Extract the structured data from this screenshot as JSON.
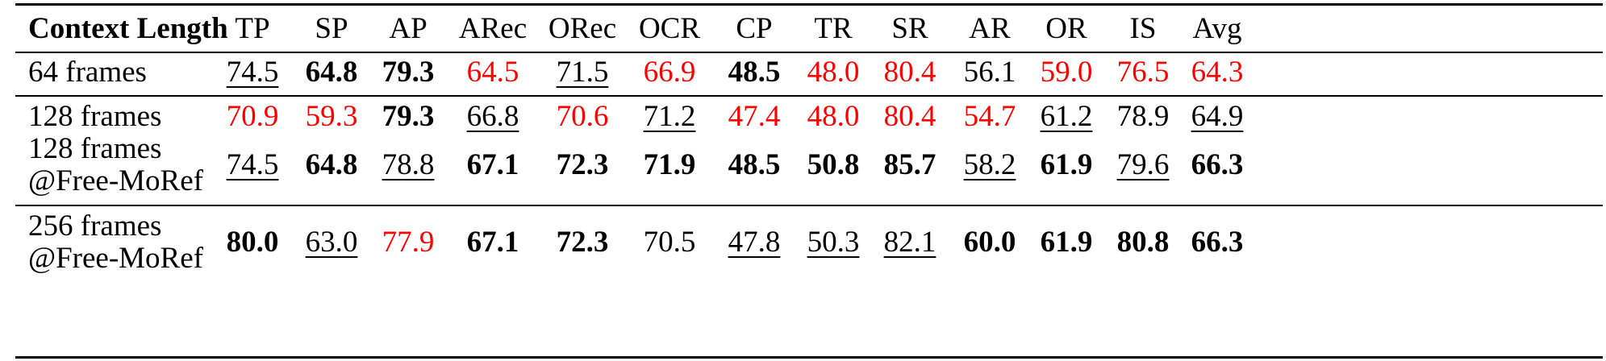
{
  "table": {
    "header": {
      "first": "Context Length",
      "columns": [
        "TP",
        "SP",
        "AP",
        "ARec",
        "ORec",
        "OCR",
        "CP",
        "TR",
        "SR",
        "AR",
        "OR",
        "IS",
        "Avg"
      ]
    },
    "rows": [
      {
        "label": [
          "64 frames"
        ],
        "cells": [
          {
            "v": "74.5",
            "s": "u"
          },
          {
            "v": "64.8",
            "s": "b"
          },
          {
            "v": "79.3",
            "s": "b"
          },
          {
            "v": "64.5",
            "s": "r"
          },
          {
            "v": "71.5",
            "s": "u"
          },
          {
            "v": "66.9",
            "s": "r"
          },
          {
            "v": "48.5",
            "s": "b"
          },
          {
            "v": "48.0",
            "s": "r"
          },
          {
            "v": "80.4",
            "s": "r"
          },
          {
            "v": "56.1",
            "s": ""
          },
          {
            "v": "59.0",
            "s": "r"
          },
          {
            "v": "76.5",
            "s": "r"
          },
          {
            "v": "64.3",
            "s": "r"
          }
        ]
      },
      {
        "label": [
          "128 frames"
        ],
        "cells": [
          {
            "v": "70.9",
            "s": "r"
          },
          {
            "v": "59.3",
            "s": "r"
          },
          {
            "v": "79.3",
            "s": "b"
          },
          {
            "v": "66.8",
            "s": "u"
          },
          {
            "v": "70.6",
            "s": "r"
          },
          {
            "v": "71.2",
            "s": "u"
          },
          {
            "v": "47.4",
            "s": "r"
          },
          {
            "v": "48.0",
            "s": "r"
          },
          {
            "v": "80.4",
            "s": "r"
          },
          {
            "v": "54.7",
            "s": "r"
          },
          {
            "v": "61.2",
            "s": "u"
          },
          {
            "v": "78.9",
            "s": ""
          },
          {
            "v": "64.9",
            "s": "u"
          }
        ]
      },
      {
        "label": [
          "128 frames",
          "@Free-MoRef"
        ],
        "cells": [
          {
            "v": "74.5",
            "s": "u"
          },
          {
            "v": "64.8",
            "s": "b"
          },
          {
            "v": "78.8",
            "s": "u"
          },
          {
            "v": "67.1",
            "s": "b"
          },
          {
            "v": "72.3",
            "s": "b"
          },
          {
            "v": "71.9",
            "s": "b"
          },
          {
            "v": "48.5",
            "s": "b"
          },
          {
            "v": "50.8",
            "s": "b"
          },
          {
            "v": "85.7",
            "s": "b"
          },
          {
            "v": "58.2",
            "s": "u"
          },
          {
            "v": "61.9",
            "s": "b"
          },
          {
            "v": "79.6",
            "s": "u"
          },
          {
            "v": "66.3",
            "s": "b"
          }
        ]
      },
      {
        "label": [
          "256 frames",
          "@Free-MoRef"
        ],
        "cells": [
          {
            "v": "80.0",
            "s": "b"
          },
          {
            "v": "63.0",
            "s": "u"
          },
          {
            "v": "77.9",
            "s": "r"
          },
          {
            "v": "67.1",
            "s": "b"
          },
          {
            "v": "72.3",
            "s": "b"
          },
          {
            "v": "70.5",
            "s": ""
          },
          {
            "v": "47.8",
            "s": "u"
          },
          {
            "v": "50.3",
            "s": "u"
          },
          {
            "v": "82.1",
            "s": "u"
          },
          {
            "v": "60.0",
            "s": "b"
          },
          {
            "v": "61.9",
            "s": "b"
          },
          {
            "v": "80.8",
            "s": "b"
          },
          {
            "v": "66.3",
            "s": "b"
          }
        ]
      }
    ]
  }
}
